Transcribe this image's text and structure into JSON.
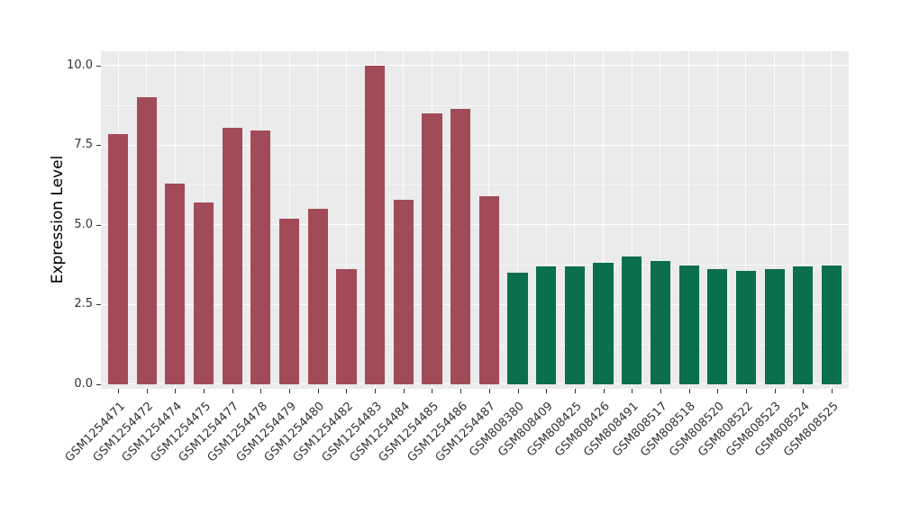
{
  "chart_data": {
    "type": "bar",
    "xlabel": "",
    "ylabel": "Expression Level",
    "ylim": [
      0,
      10
    ],
    "display_range": [
      -0.15,
      10.45
    ],
    "yticks": [
      0,
      2.5,
      5,
      7.5,
      10
    ],
    "ytick_labels": [
      "0.0",
      "2.5",
      "5.0",
      "7.5",
      "10.0"
    ],
    "yticks_minor": [
      1.25,
      3.75,
      6.25,
      8.75
    ],
    "grid": "white major and minor gridlines on gray panel",
    "legend_position": "none",
    "panel_background": "#EBEBEB",
    "grid_color": "#FFFFFF",
    "tick_label_color": "#333333",
    "axis_title_color": "#000000",
    "bar_width_fraction": 0.7,
    "colors": {
      "groupA": "#A24B58",
      "groupB": "#0B6E4F"
    },
    "bars": [
      {
        "label": "GSM1254471",
        "value": 7.85,
        "group": "groupA"
      },
      {
        "label": "GSM1254472",
        "value": 9.0,
        "group": "groupA"
      },
      {
        "label": "GSM1254474",
        "value": 6.3,
        "group": "groupA"
      },
      {
        "label": "GSM1254475",
        "value": 5.7,
        "group": "groupA"
      },
      {
        "label": "GSM1254477",
        "value": 8.05,
        "group": "groupA"
      },
      {
        "label": "GSM1254478",
        "value": 7.95,
        "group": "groupA"
      },
      {
        "label": "GSM1254479",
        "value": 5.2,
        "group": "groupA"
      },
      {
        "label": "GSM1254480",
        "value": 5.5,
        "group": "groupA"
      },
      {
        "label": "GSM1254482",
        "value": 3.6,
        "group": "groupA"
      },
      {
        "label": "GSM1254483",
        "value": 10.0,
        "group": "groupA"
      },
      {
        "label": "GSM1254484",
        "value": 5.8,
        "group": "groupA"
      },
      {
        "label": "GSM1254485",
        "value": 8.5,
        "group": "groupA"
      },
      {
        "label": "GSM1254486",
        "value": 8.65,
        "group": "groupA"
      },
      {
        "label": "GSM1254487",
        "value": 5.9,
        "group": "groupA"
      },
      {
        "label": "GSM808380",
        "value": 3.5,
        "group": "groupB"
      },
      {
        "label": "GSM808409",
        "value": 3.7,
        "group": "groupB"
      },
      {
        "label": "GSM808425",
        "value": 3.7,
        "group": "groupB"
      },
      {
        "label": "GSM808426",
        "value": 3.8,
        "group": "groupB"
      },
      {
        "label": "GSM808491",
        "value": 4.0,
        "group": "groupB"
      },
      {
        "label": "GSM808517",
        "value": 3.85,
        "group": "groupB"
      },
      {
        "label": "GSM808518",
        "value": 3.72,
        "group": "groupB"
      },
      {
        "label": "GSM808520",
        "value": 3.62,
        "group": "groupB"
      },
      {
        "label": "GSM808522",
        "value": 3.55,
        "group": "groupB"
      },
      {
        "label": "GSM808523",
        "value": 3.62,
        "group": "groupB"
      },
      {
        "label": "GSM808524",
        "value": 3.7,
        "group": "groupB"
      },
      {
        "label": "GSM808525",
        "value": 3.72,
        "group": "groupB"
      }
    ]
  }
}
